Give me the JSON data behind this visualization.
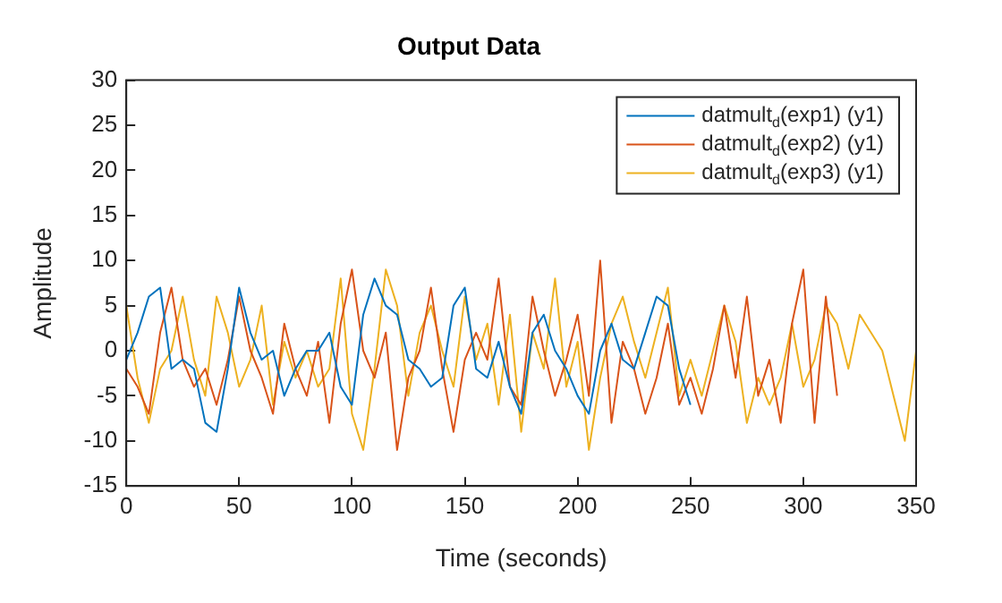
{
  "chart_data": {
    "type": "line",
    "title": "Output Data",
    "xlabel": "Time (seconds)",
    "ylabel": "Amplitude",
    "x": [
      0,
      5,
      10,
      15,
      20,
      25,
      30,
      35,
      40,
      45,
      50,
      55,
      60,
      65,
      70,
      75,
      80,
      85,
      90,
      95,
      100,
      105,
      110,
      115,
      120,
      125,
      130,
      135,
      140,
      145,
      150,
      155,
      160,
      165,
      170,
      175,
      180,
      185,
      190,
      195,
      200,
      205,
      210,
      215,
      220,
      225,
      230,
      235,
      240,
      245,
      250,
      255,
      260,
      265,
      270,
      275,
      280,
      285,
      290,
      295,
      300,
      305,
      310,
      315,
      320,
      325,
      330,
      335,
      340,
      345,
      350
    ],
    "series": [
      {
        "name": "datmult$_{d}$(exp1) (y1)",
        "color": "#0072bd",
        "values": [
          -1,
          2,
          6,
          7,
          -2,
          -1,
          -2,
          -8,
          -9,
          -2,
          7,
          2,
          -1,
          0,
          -5,
          -2,
          0,
          0,
          2,
          -4,
          -6,
          4,
          8,
          5,
          4,
          -1,
          -2,
          -4,
          -3,
          5,
          7,
          -2,
          -3,
          1,
          -4,
          -7,
          2,
          4,
          0,
          -2,
          -5,
          -7,
          0,
          3,
          -1,
          -2,
          2,
          6,
          5,
          -2,
          -6,
          null,
          null,
          null,
          null,
          null,
          null,
          null,
          null,
          null,
          null,
          null,
          null,
          null,
          null,
          null,
          null,
          null,
          null,
          null,
          null
        ]
      },
      {
        "name": "datmult$_{d}$(exp2) (y1)",
        "color": "#d95319",
        "values": [
          -2,
          -4,
          -7,
          2,
          7,
          -1,
          -4,
          -2,
          -6,
          -1,
          6,
          0,
          -3,
          -7,
          3,
          -2,
          -5,
          1,
          -8,
          3,
          9,
          0,
          -3,
          2,
          -11,
          -3,
          0,
          7,
          -2,
          -9,
          -1,
          2,
          -1,
          8,
          -4,
          -6,
          6,
          0,
          -5,
          -1,
          4,
          -5,
          10,
          -8,
          1,
          -2,
          -7,
          -3,
          3,
          -6,
          -3,
          -7,
          -2,
          5,
          -3,
          6,
          -5,
          -1,
          -8,
          3,
          9,
          -8,
          6,
          -5,
          null,
          null,
          null,
          null,
          null,
          null,
          null
        ]
      },
      {
        "name": "datmult$_{d}$(exp3) (y1)",
        "color": "#edb120",
        "values": [
          5,
          -3,
          -8,
          -2,
          0,
          6,
          -1,
          -5,
          6,
          2,
          -4,
          -1,
          5,
          -6,
          1,
          -3,
          0,
          -4,
          -2,
          8,
          -7,
          -11,
          -2,
          9,
          5,
          -5,
          2,
          5,
          0,
          -4,
          6,
          -1,
          3,
          -6,
          4,
          -9,
          2,
          -2,
          8,
          -4,
          1,
          -11,
          -3,
          3,
          6,
          1,
          -3,
          2,
          7,
          -5,
          -1,
          -5,
          0,
          5,
          1,
          -8,
          -3,
          -6,
          -3,
          3,
          -4,
          -1,
          5,
          3,
          -2,
          4,
          2,
          0,
          -5,
          -10,
          0
        ]
      }
    ],
    "xlim": [
      0,
      350
    ],
    "xticks": [
      0,
      50,
      100,
      150,
      200,
      250,
      300,
      350
    ],
    "ylim": [
      -15,
      30
    ],
    "yticks": [
      -15,
      -10,
      -5,
      0,
      5,
      10,
      15,
      20,
      25,
      30
    ],
    "grid": false,
    "legend": "top right",
    "marker": "none",
    "line_style": "solid"
  }
}
